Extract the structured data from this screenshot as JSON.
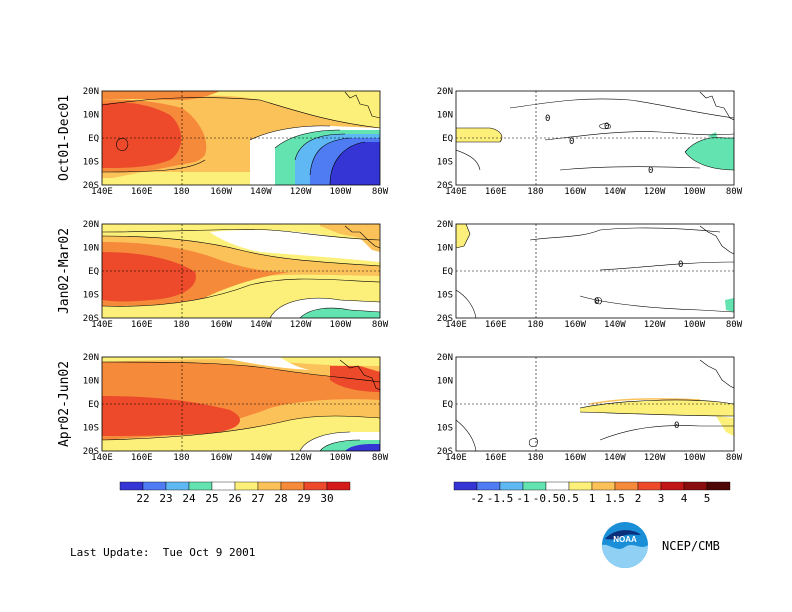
{
  "figure": {
    "panels": [
      {
        "row_title": "Oct01-Dec01",
        "kind": "sst"
      },
      {
        "row_title": "Jan02-Mar02",
        "kind": "sst"
      },
      {
        "row_title": "Apr02-Jun02",
        "kind": "sst"
      }
    ],
    "anomaly_panels": [
      {
        "kind": "anomaly"
      },
      {
        "kind": "anomaly"
      },
      {
        "kind": "anomaly"
      }
    ],
    "x_ticks": [
      "140E",
      "160E",
      "180",
      "160W",
      "140W",
      "120W",
      "100W",
      "80W"
    ],
    "y_ticks": [
      "20N",
      "10N",
      "EQ",
      "10S",
      "20S"
    ],
    "sst_colorbar": {
      "labels": [
        "22",
        "23",
        "24",
        "25",
        "26",
        "27",
        "28",
        "29",
        "30"
      ],
      "colors": [
        "#3535d6",
        "#4f7cf3",
        "#5fb8f3",
        "#63e3b0",
        "#ffffff",
        "#fdf07a",
        "#fcc25a",
        "#f68a3b",
        "#ec4a2a",
        "#d41a1a"
      ]
    },
    "anom_colorbar": {
      "labels": [
        "-2",
        "-1.5",
        "-1",
        "-0.5",
        "0.5",
        "1",
        "1.5",
        "2",
        "3",
        "4",
        "5"
      ],
      "colors": [
        "#3535d6",
        "#4f7cf3",
        "#5fb8f3",
        "#63e3b0",
        "#ffffff",
        "#fdf07a",
        "#fcc25a",
        "#f68a3b",
        "#ec4a2a",
        "#c21515",
        "#8a0d0d",
        "#4d0606"
      ]
    },
    "anom_contour_label": "0"
  },
  "footer": {
    "last_update": "Last Update:  Tue Oct 9 2001",
    "credit": "NCEP/CMB",
    "logo_text": "NOAA",
    "logo_icon": "noaa-logo-icon"
  }
}
